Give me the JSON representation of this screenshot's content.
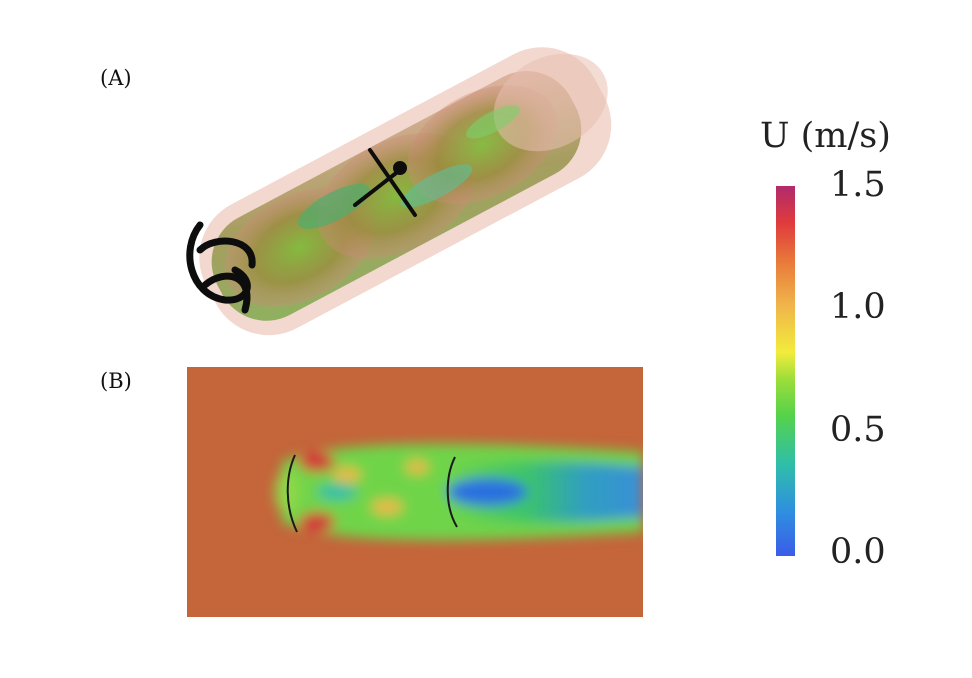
{
  "panels": {
    "a": {
      "label": "(A)"
    },
    "b": {
      "label": "(B)"
    }
  },
  "colorbar": {
    "title": "U (m/s)",
    "ticks": [
      "1.5",
      "1.0",
      "0.5",
      "0.0"
    ],
    "range": [
      0.0,
      1.5
    ],
    "colormap": [
      "#3a5ce8",
      "#2fbfa8",
      "#55d24a",
      "#f2ec3c",
      "#e8773a",
      "#df3b3c",
      "#b12a6c"
    ]
  },
  "colors": {
    "background_field": "#c4653a",
    "turbine_blade": "#0d0d0d"
  }
}
